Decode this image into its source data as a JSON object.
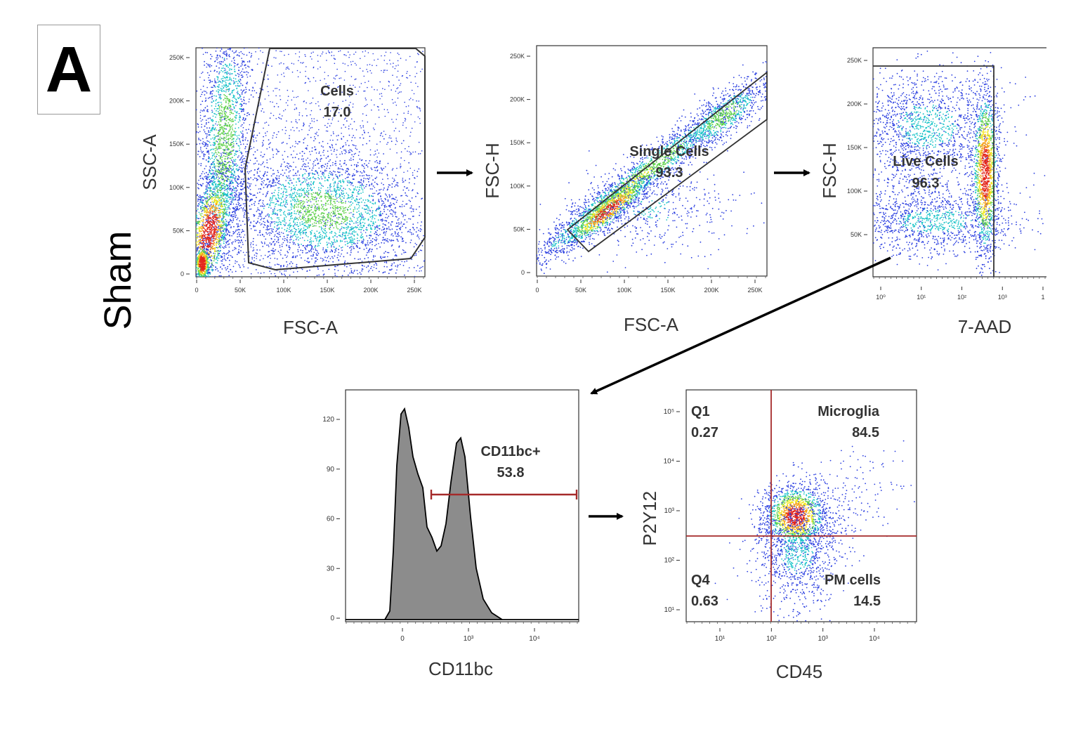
{
  "panel_label": "A",
  "condition_label": "Sham",
  "chart_data": [
    {
      "type": "scatter",
      "id": "cells",
      "xlabel": "FSC-A",
      "ylabel": "SSC-A",
      "x_ticks": [
        "0",
        "50K",
        "100K",
        "150K",
        "200K",
        "250K"
      ],
      "y_ticks": [
        "0",
        "50K",
        "100K",
        "150K",
        "200K",
        "250K"
      ],
      "xlim": [
        0,
        262144
      ],
      "ylim": [
        0,
        262144
      ],
      "gate": {
        "name": "Cells",
        "value": "17.0"
      }
    },
    {
      "type": "scatter",
      "id": "single-cells",
      "xlabel": "FSC-A",
      "ylabel": "FSC-H",
      "x_ticks": [
        "0",
        "50K",
        "100K",
        "150K",
        "200K",
        "250K"
      ],
      "y_ticks": [
        "0",
        "50K",
        "100K",
        "150K",
        "200K",
        "250K"
      ],
      "xlim": [
        0,
        262144
      ],
      "ylim": [
        0,
        262144
      ],
      "gate": {
        "name": "Single Cells",
        "value": "93.3"
      }
    },
    {
      "type": "scatter",
      "id": "live-cells",
      "xlabel": "7-AAD",
      "ylabel": "FSC-H",
      "x_ticks": [
        "10⁰",
        "10¹",
        "10²",
        "10³",
        "1"
      ],
      "y_ticks": [
        "50K",
        "100K",
        "150K",
        "200K",
        "250K"
      ],
      "x_scale": "log",
      "gate": {
        "name": "Live Cells",
        "value": "96.3"
      }
    },
    {
      "type": "histogram",
      "id": "cd11bc",
      "xlabel": "CD11bc",
      "x_ticks": [
        "0",
        "10³",
        "10⁴"
      ],
      "y_ticks": [
        "0",
        "30",
        "60",
        "90",
        "120"
      ],
      "ylim": [
        0,
        132
      ],
      "gate": {
        "name": "CD11bc+",
        "value": "53.8"
      }
    },
    {
      "type": "scatter",
      "id": "p2y12-cd45",
      "xlabel": "CD45",
      "ylabel": "P2Y12",
      "x_ticks": [
        "10¹",
        "10²",
        "10³",
        "10⁴"
      ],
      "y_ticks": [
        "10¹",
        "10²",
        "10³",
        "10⁴",
        "10⁵"
      ],
      "x_scale": "log",
      "y_scale": "log",
      "quadrants": [
        {
          "name": "Q1",
          "value": "0.27"
        },
        {
          "name": "Microglia",
          "value": "84.5"
        },
        {
          "name": "Q4",
          "value": "0.63"
        },
        {
          "name": "PM cells",
          "value": "14.5"
        }
      ]
    }
  ]
}
